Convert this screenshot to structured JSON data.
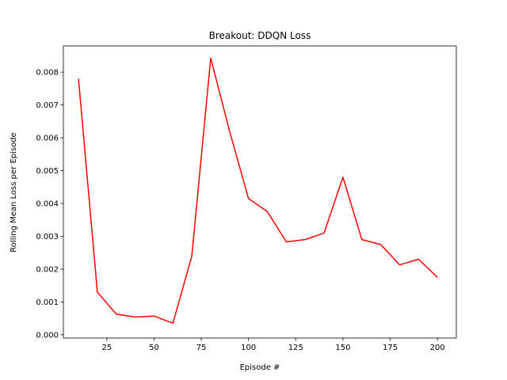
{
  "chart_data": {
    "type": "line",
    "title": "Breakout: DDQN Loss",
    "xlabel": "Episode #",
    "ylabel": "Rolling Mean Loss per Episode",
    "xlim": [
      2,
      210
    ],
    "ylim": [
      -0.0001,
      0.0088
    ],
    "xticks": [
      25,
      50,
      75,
      100,
      125,
      150,
      175,
      200
    ],
    "xtick_labels": [
      "25",
      "50",
      "75",
      "100",
      "125",
      "150",
      "175",
      "200"
    ],
    "yticks": [
      0.0,
      0.001,
      0.002,
      0.003,
      0.004,
      0.005,
      0.006,
      0.007,
      0.008
    ],
    "ytick_labels": [
      "0.000",
      "0.001",
      "0.002",
      "0.003",
      "0.004",
      "0.005",
      "0.006",
      "0.007",
      "0.008"
    ],
    "grid": false,
    "legend": "none",
    "series": [
      {
        "color": "#ff0000",
        "x": [
          10,
          20,
          30,
          40,
          50,
          60,
          70,
          80,
          90,
          100,
          110,
          120,
          130,
          140,
          150,
          160,
          170,
          180,
          190,
          200
        ],
        "y": [
          0.0078,
          0.0013,
          0.00063,
          0.00054,
          0.00057,
          0.00035,
          0.0024,
          0.00843,
          0.0062,
          0.00415,
          0.00375,
          0.00283,
          0.0029,
          0.0031,
          0.0048,
          0.0029,
          0.00275,
          0.00213,
          0.0023,
          0.00175
        ]
      }
    ]
  }
}
